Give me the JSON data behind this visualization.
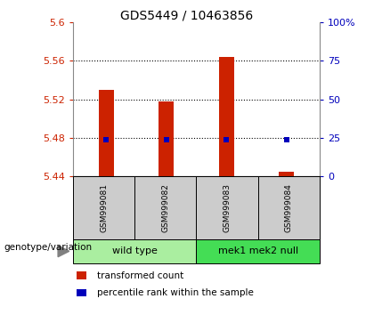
{
  "title": "GDS5449 / 10463856",
  "samples": [
    "GSM999081",
    "GSM999082",
    "GSM999083",
    "GSM999084"
  ],
  "bar_values": [
    5.53,
    5.518,
    5.564,
    5.445
  ],
  "percentile_values": [
    24.0,
    24.0,
    24.0,
    23.5
  ],
  "bar_bottom": 5.44,
  "ylim_left": [
    5.44,
    5.6
  ],
  "ylim_right": [
    0,
    100
  ],
  "yticks_left": [
    5.44,
    5.48,
    5.52,
    5.56,
    5.6
  ],
  "yticks_right": [
    0,
    25,
    50,
    75,
    100
  ],
  "ytick_labels_left": [
    "5.44",
    "5.48",
    "5.52",
    "5.56",
    "5.6"
  ],
  "ytick_labels_right": [
    "0",
    "25",
    "50",
    "75",
    "100%"
  ],
  "bar_color": "#cc2200",
  "dot_color": "#0000bb",
  "groups": [
    {
      "label": "wild type",
      "samples": [
        0,
        1
      ],
      "color": "#aaeea0"
    },
    {
      "label": "mek1 mek2 null",
      "samples": [
        2,
        3
      ],
      "color": "#44dd55"
    }
  ],
  "group_label_prefix": "genotype/variation",
  "legend_bar_label": "transformed count",
  "legend_dot_label": "percentile rank within the sample",
  "bar_width": 0.25,
  "sample_box_color": "#cccccc",
  "title_fontsize": 10,
  "tick_fontsize": 8,
  "legend_fontsize": 7.5
}
